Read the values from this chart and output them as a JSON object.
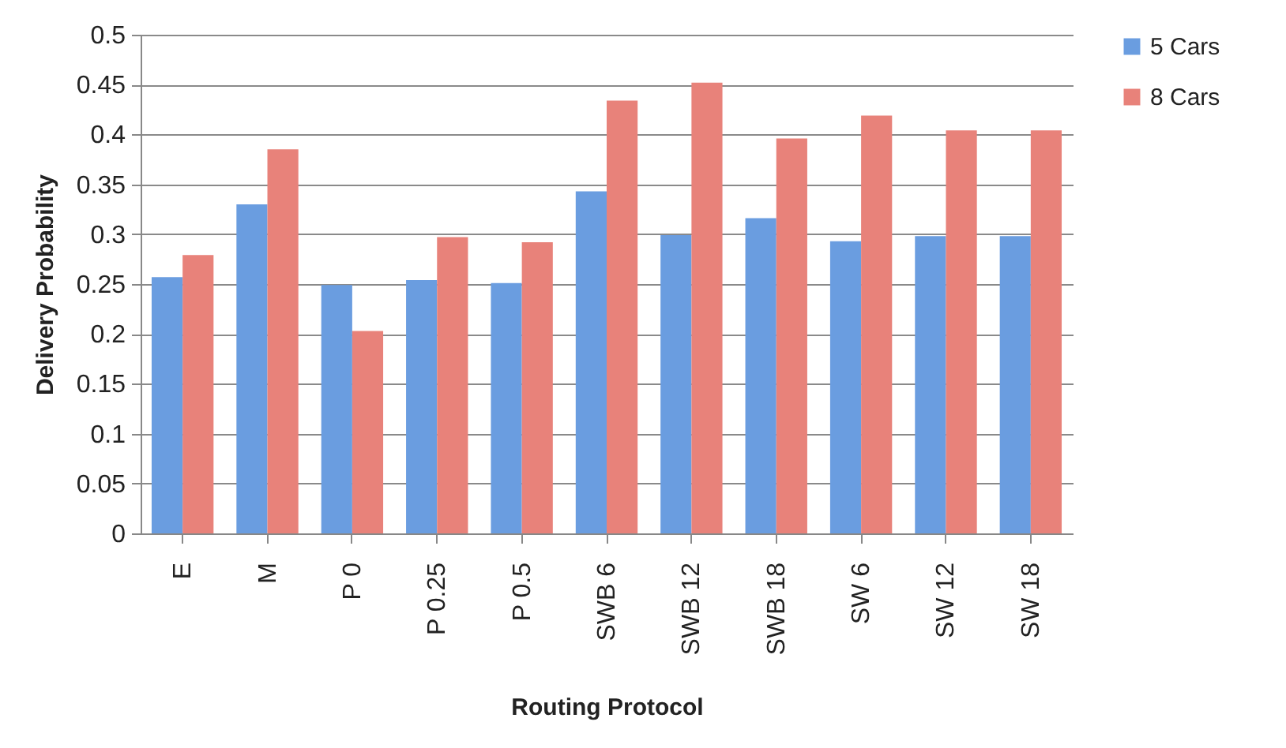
{
  "chart_data": {
    "type": "bar",
    "xlabel": "Routing Protocol",
    "ylabel": "Delivery Probability",
    "categories": [
      "E",
      "M",
      "P 0",
      "P 0.25",
      "P 0.5",
      "SWB 6",
      "SWB 12",
      "SWB 18",
      "SW 6",
      "SW 12",
      "SW 18"
    ],
    "series": [
      {
        "name": "5 Cars",
        "color": "#6a9de0",
        "values": [
          0.257,
          0.33,
          0.249,
          0.254,
          0.251,
          0.343,
          0.299,
          0.316,
          0.293,
          0.298,
          0.298
        ]
      },
      {
        "name": "8 Cars",
        "color": "#e8827a",
        "values": [
          0.279,
          0.385,
          0.203,
          0.297,
          0.292,
          0.434,
          0.452,
          0.396,
          0.419,
          0.404,
          0.404
        ]
      }
    ],
    "ylim": [
      0,
      0.5
    ],
    "yticks": [
      0,
      0.05,
      0.1,
      0.15,
      0.2,
      0.25,
      0.3,
      0.35,
      0.4,
      0.45,
      0.5
    ],
    "grid": "y",
    "legend": "right"
  }
}
